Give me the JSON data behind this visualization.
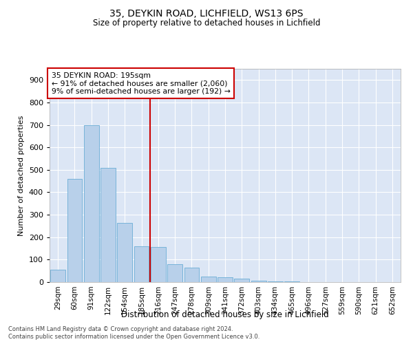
{
  "title1": "35, DEYKIN ROAD, LICHFIELD, WS13 6PS",
  "title2": "Size of property relative to detached houses in Lichfield",
  "xlabel": "Distribution of detached houses by size in Lichfield",
  "ylabel": "Number of detached properties",
  "categories": [
    "29sqm",
    "60sqm",
    "91sqm",
    "122sqm",
    "154sqm",
    "185sqm",
    "216sqm",
    "247sqm",
    "278sqm",
    "309sqm",
    "341sqm",
    "372sqm",
    "403sqm",
    "434sqm",
    "465sqm",
    "496sqm",
    "527sqm",
    "559sqm",
    "590sqm",
    "621sqm",
    "652sqm"
  ],
  "bar_heights": [
    55,
    460,
    700,
    510,
    265,
    160,
    155,
    80,
    65,
    25,
    20,
    15,
    5,
    3,
    2,
    1,
    0,
    0,
    0,
    0,
    1
  ],
  "bar_color": "#b8d0ea",
  "bar_edgecolor": "#6aadd5",
  "annotation_text_line1": "35 DEYKIN ROAD: 195sqm",
  "annotation_text_line2": "← 91% of detached houses are smaller (2,060)",
  "annotation_text_line3": "9% of semi-detached houses are larger (192) →",
  "annotation_box_facecolor": "white",
  "annotation_box_edgecolor": "#cc0000",
  "vline_color": "#cc0000",
  "vline_x": 6.0,
  "ylim": [
    0,
    950
  ],
  "yticks": [
    0,
    100,
    200,
    300,
    400,
    500,
    600,
    700,
    800,
    900
  ],
  "background_color": "#dce6f5",
  "grid_color": "white",
  "footer1": "Contains HM Land Registry data © Crown copyright and database right 2024.",
  "footer2": "Contains public sector information licensed under the Open Government Licence v3.0."
}
